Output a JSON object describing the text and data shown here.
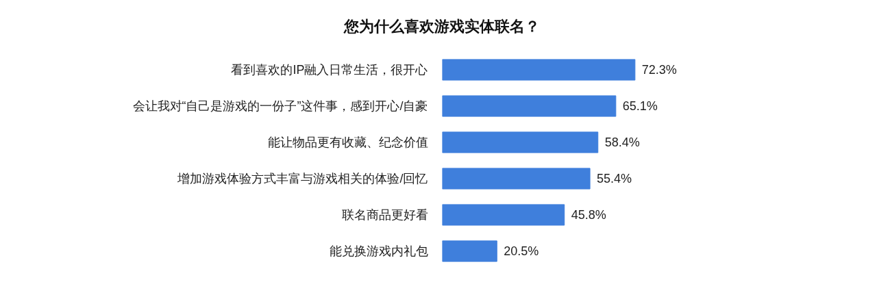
{
  "chart_data": {
    "type": "bar",
    "orientation": "horizontal",
    "title": "您为什么喜欢游戏实体联名？",
    "categories": [
      "看到喜欢的IP融入日常生活，很开心",
      "会让我对“自己是游戏的一份子”这件事，感到开心/自豪",
      "能让物品更有收藏、纪念价值",
      "增加游戏体验方式丰富与游戏相关的体验/回忆",
      "联名商品更好看",
      "能兑换游戏内礼包"
    ],
    "values": [
      72.3,
      65.1,
      58.4,
      55.4,
      45.8,
      20.5
    ],
    "value_labels": [
      "72.3%",
      "65.1%",
      "58.4%",
      "55.4%",
      "45.8%",
      "20.5%"
    ],
    "color": "#3f7fdc",
    "tick_labels": false
  }
}
